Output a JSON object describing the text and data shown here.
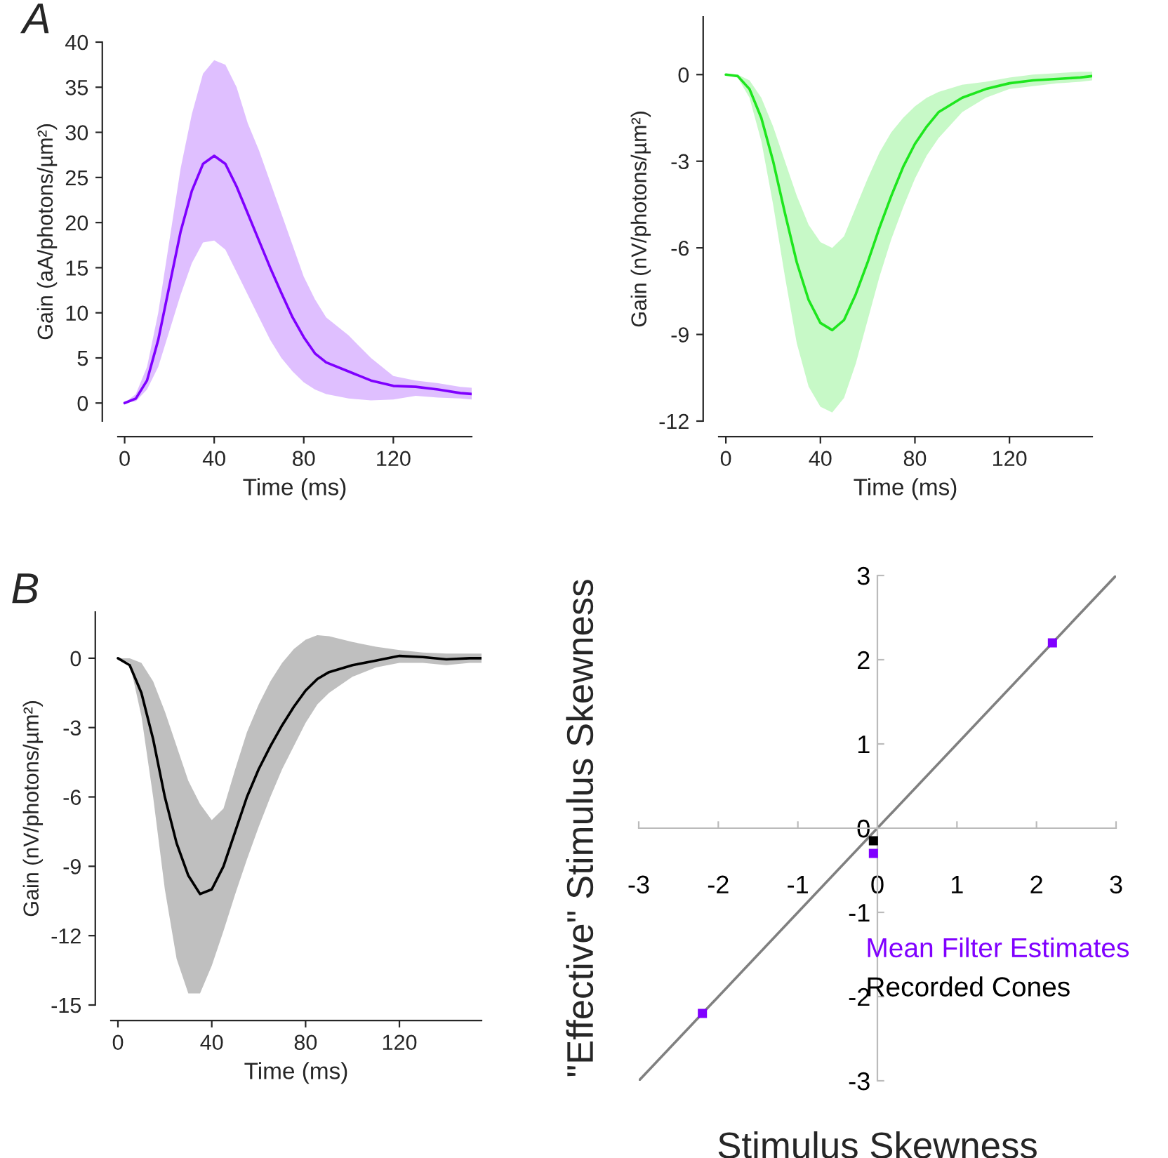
{
  "chart_data": [
    {
      "type": "line",
      "annotations": [
        "A"
      ],
      "xlabel": "Time (ms)",
      "ylabel": "Gain (aA/photons/µm²)",
      "xlim": [
        -3,
        155
      ],
      "ylim": [
        -2,
        40
      ],
      "xticks": [
        0,
        40,
        80,
        120
      ],
      "yticks": [
        0,
        5,
        10,
        15,
        20,
        25,
        30,
        35,
        40
      ],
      "grid": false,
      "legend": false,
      "x": [
        0,
        5,
        10,
        15,
        20,
        25,
        30,
        35,
        40,
        45,
        50,
        55,
        60,
        65,
        70,
        75,
        80,
        85,
        90,
        100,
        110,
        120,
        130,
        140,
        150,
        155
      ],
      "series": [
        {
          "color": "#7f00ff",
          "values": [
            0,
            0.5,
            2.5,
            7,
            13,
            19,
            23.5,
            26.5,
            27.4,
            26.5,
            24,
            21,
            18,
            15,
            12.2,
            9.5,
            7.3,
            5.5,
            4.5,
            3.5,
            2.5,
            1.9,
            1.8,
            1.5,
            1.1,
            1.0
          ],
          "upper": [
            0,
            1,
            4,
            10,
            18,
            26,
            32,
            36.5,
            38,
            37.5,
            35,
            31,
            28,
            24.5,
            21,
            17.5,
            14,
            11.5,
            9.5,
            7.5,
            5,
            3,
            2.5,
            2.2,
            1.8,
            1.7
          ],
          "lower": [
            0,
            0.2,
            1.5,
            4,
            8,
            12,
            15.5,
            17.8,
            18,
            17,
            14.5,
            12,
            9.5,
            7,
            5,
            3.5,
            2.3,
            1.5,
            1,
            0.5,
            0.3,
            0.4,
            0.8,
            0.6,
            0.5,
            0.4
          ]
        }
      ]
    },
    {
      "type": "line",
      "xlabel": "Time (ms)",
      "ylabel": "Gain (nV/photons/µm²)",
      "xlim": [
        -3,
        155
      ],
      "ylim": [
        -12,
        2
      ],
      "xticks": [
        0,
        40,
        80,
        120
      ],
      "yticks": [
        -12,
        -9,
        -6,
        -3,
        0
      ],
      "grid": false,
      "legend": false,
      "x": [
        0,
        5,
        10,
        15,
        20,
        25,
        30,
        35,
        40,
        45,
        50,
        55,
        60,
        65,
        70,
        75,
        80,
        85,
        90,
        100,
        110,
        120,
        130,
        140,
        150,
        155
      ],
      "series": [
        {
          "color": "#1ee61e",
          "values": [
            0,
            -0.05,
            -0.5,
            -1.5,
            -3,
            -4.8,
            -6.5,
            -7.8,
            -8.6,
            -8.85,
            -8.5,
            -7.6,
            -6.5,
            -5.3,
            -4.2,
            -3.2,
            -2.4,
            -1.8,
            -1.3,
            -0.8,
            -0.5,
            -0.3,
            -0.2,
            -0.15,
            -0.1,
            -0.05
          ],
          "upper": [
            0,
            0,
            -0.2,
            -0.8,
            -1.8,
            -3,
            -4.2,
            -5.2,
            -5.8,
            -6,
            -5.6,
            -4.6,
            -3.6,
            -2.7,
            -2,
            -1.5,
            -1.1,
            -0.8,
            -0.6,
            -0.35,
            -0.25,
            -0.1,
            0,
            0.05,
            0.1,
            0.1
          ],
          "lower": [
            0,
            -0.1,
            -0.8,
            -2.3,
            -4.5,
            -7,
            -9.3,
            -10.8,
            -11.5,
            -11.7,
            -11.2,
            -10,
            -8.5,
            -7,
            -5.7,
            -4.6,
            -3.6,
            -2.8,
            -2.2,
            -1.3,
            -0.8,
            -0.5,
            -0.4,
            -0.3,
            -0.25,
            -0.2
          ]
        }
      ]
    },
    {
      "type": "line",
      "annotations": [
        "B"
      ],
      "xlabel": "Time (ms)",
      "ylabel": "Gain (nV/photons/µm²)",
      "xlim": [
        -3,
        155
      ],
      "ylim": [
        -15,
        2
      ],
      "xticks": [
        0,
        40,
        80,
        120
      ],
      "yticks": [
        -15,
        -12,
        -9,
        -6,
        -3,
        0
      ],
      "grid": false,
      "legend": false,
      "x": [
        0,
        5,
        10,
        15,
        20,
        25,
        30,
        35,
        40,
        45,
        50,
        55,
        60,
        65,
        70,
        75,
        80,
        85,
        90,
        100,
        110,
        120,
        130,
        140,
        150,
        155
      ],
      "series": [
        {
          "color": "#000000",
          "values": [
            0,
            -0.3,
            -1.5,
            -3.5,
            -6,
            -8,
            -9.4,
            -10.2,
            -10,
            -9,
            -7.5,
            -6,
            -4.8,
            -3.8,
            -2.9,
            -2.1,
            -1.4,
            -0.9,
            -0.6,
            -0.3,
            -0.1,
            0.1,
            0.05,
            -0.05,
            0,
            0
          ],
          "upper": [
            0,
            0,
            -0.2,
            -1,
            -2.3,
            -3.8,
            -5.3,
            -6.3,
            -7,
            -6.5,
            -4.8,
            -3.2,
            -2,
            -1,
            -0.2,
            0.4,
            0.8,
            1,
            0.95,
            0.7,
            0.5,
            0.35,
            0.25,
            0.2,
            0.2,
            0.2
          ],
          "lower": [
            0,
            -0.2,
            -2.5,
            -6,
            -10,
            -13,
            -14.5,
            -14.5,
            -13.3,
            -11.8,
            -10.2,
            -8.7,
            -7.3,
            -6,
            -4.8,
            -3.8,
            -2.8,
            -2,
            -1.5,
            -0.8,
            -0.4,
            -0.2,
            -0.2,
            -0.3,
            -0.2,
            -0.2
          ]
        }
      ]
    },
    {
      "type": "scatter",
      "xlabel": "Stimulus Skewness",
      "ylabel": "\"Effective\" Stimulus Skewness",
      "xlim": [
        -3,
        3
      ],
      "ylim": [
        -3,
        3
      ],
      "xticks": [
        -3,
        -2,
        -1,
        0,
        1,
        2,
        3
      ],
      "yticks": [
        -3,
        -2,
        -1,
        0,
        1,
        2,
        3
      ],
      "grid": false,
      "legend": "right",
      "series": [
        {
          "type": "line",
          "color": "#808080",
          "x": [
            -3,
            3
          ],
          "values": [
            -3,
            3
          ]
        },
        {
          "name": "Recorded Cones",
          "color": "#000000",
          "marker": "square",
          "x": [
            -0.05
          ],
          "values": [
            -0.15
          ]
        },
        {
          "name": "Mean Filter Estimates",
          "color": "#8000ff",
          "marker": "square",
          "x": [
            -2.2,
            -0.05,
            2.2
          ],
          "values": [
            -2.2,
            -0.3,
            2.2
          ]
        }
      ]
    }
  ]
}
